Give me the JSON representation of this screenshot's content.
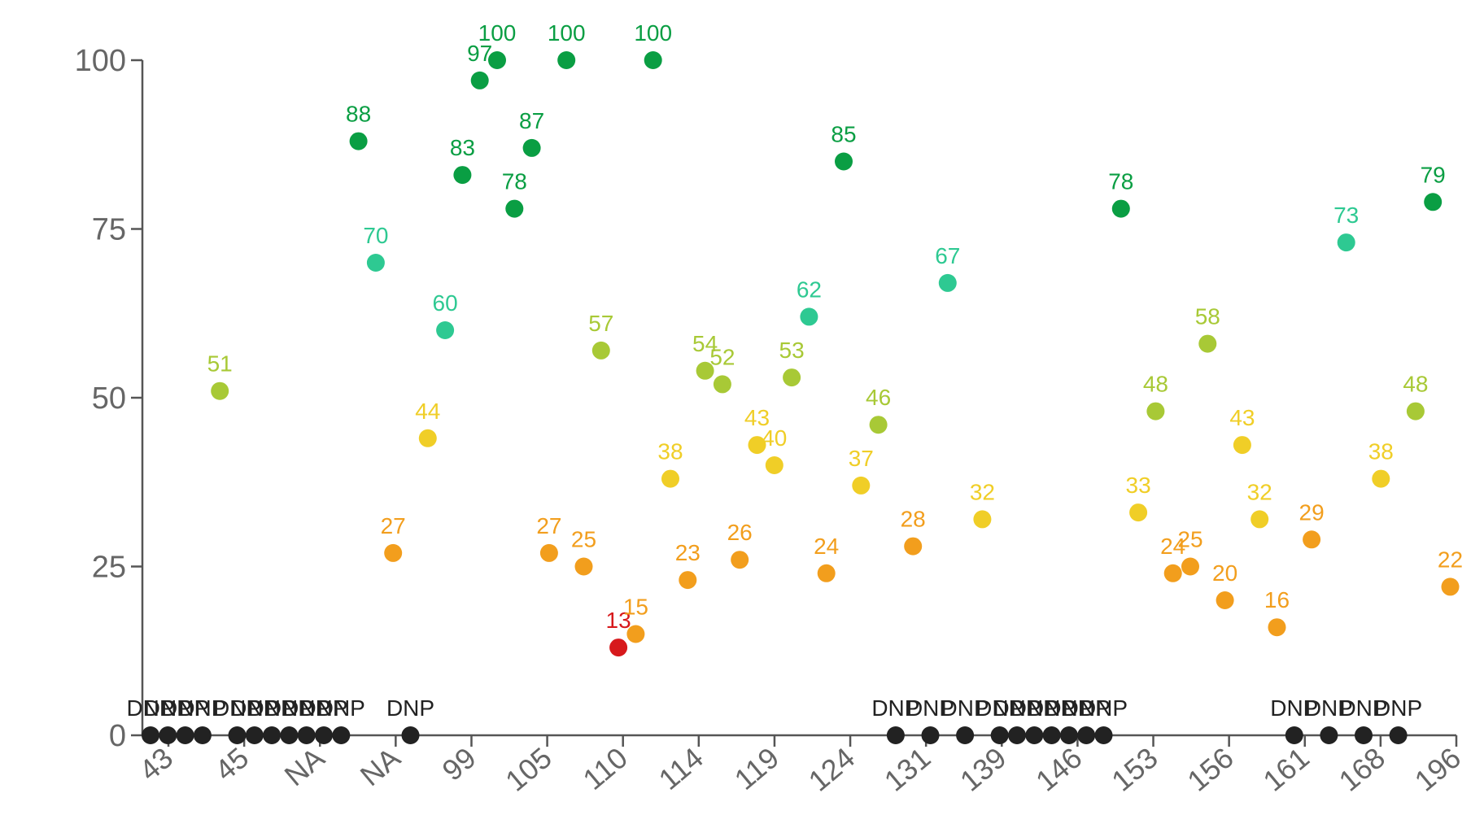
{
  "chart_data": {
    "type": "scatter",
    "title": "",
    "xlabel": "",
    "ylabel": "",
    "ylim": [
      0,
      100
    ],
    "yticks": [
      0,
      25,
      50,
      75,
      100
    ],
    "grid": false,
    "legend": "none",
    "x_tick_labels": [
      "43",
      "45",
      "NA",
      "NA",
      "99",
      "105",
      "110",
      "114",
      "119",
      "124",
      "131",
      "139",
      "146",
      "153",
      "156",
      "161",
      "168",
      "196"
    ],
    "missing_label": "DNP",
    "points": [
      {
        "label": "DNP"
      },
      {
        "label": "DNP"
      },
      {
        "label": "DNP"
      },
      {
        "label": "DNP"
      },
      {
        "value": 51,
        "label": "51"
      },
      {
        "label": "DNP"
      },
      {
        "label": "DNP"
      },
      {
        "label": "DNP"
      },
      {
        "label": "DNP"
      },
      {
        "label": "DNP"
      },
      {
        "label": "DNP"
      },
      {
        "label": "DNP"
      },
      {
        "value": 88,
        "label": "88"
      },
      {
        "value": 70,
        "label": "70"
      },
      {
        "value": 27,
        "label": "27"
      },
      {
        "label": "DNP"
      },
      {
        "value": 44,
        "label": "44"
      },
      {
        "value": 60,
        "label": "60"
      },
      {
        "value": 83,
        "label": "83"
      },
      {
        "value": 97,
        "label": "97"
      },
      {
        "value": 100,
        "label": "100"
      },
      {
        "value": 78,
        "label": "78"
      },
      {
        "value": 87,
        "label": "87"
      },
      {
        "value": 27,
        "label": "27"
      },
      {
        "value": 100,
        "label": "100"
      },
      {
        "value": 25,
        "label": "25"
      },
      {
        "value": 57,
        "label": "57"
      },
      {
        "value": 13,
        "label": "13"
      },
      {
        "value": 15,
        "label": "15"
      },
      {
        "value": 100,
        "label": "100"
      },
      {
        "value": 38,
        "label": "38"
      },
      {
        "value": 23,
        "label": "23"
      },
      {
        "value": 54,
        "label": "54"
      },
      {
        "value": 52,
        "label": "52"
      },
      {
        "value": 26,
        "label": "26"
      },
      {
        "value": 43,
        "label": "43"
      },
      {
        "value": 40,
        "label": "40"
      },
      {
        "value": 53,
        "label": "53"
      },
      {
        "value": 62,
        "label": "62"
      },
      {
        "value": 24,
        "label": "24"
      },
      {
        "value": 85,
        "label": "85"
      },
      {
        "value": 37,
        "label": "37"
      },
      {
        "value": 46,
        "label": "46"
      },
      {
        "label": "DNP"
      },
      {
        "value": 28,
        "label": "28"
      },
      {
        "label": "DNP"
      },
      {
        "value": 67,
        "label": "67"
      },
      {
        "label": "DNP"
      },
      {
        "value": 32,
        "label": "32"
      },
      {
        "label": "DNP"
      },
      {
        "label": "DNP"
      },
      {
        "label": "DNP"
      },
      {
        "label": "DNP"
      },
      {
        "label": "DNP"
      },
      {
        "label": "DNP"
      },
      {
        "label": "DNP"
      },
      {
        "value": 78,
        "label": "78"
      },
      {
        "value": 33,
        "label": "33"
      },
      {
        "value": 48,
        "label": "48"
      },
      {
        "value": 24,
        "label": "24"
      },
      {
        "value": 25,
        "label": "25"
      },
      {
        "value": 58,
        "label": "58"
      },
      {
        "value": 20,
        "label": "20"
      },
      {
        "value": 43,
        "label": "43"
      },
      {
        "value": 32,
        "label": "32"
      },
      {
        "value": 16,
        "label": "16"
      },
      {
        "label": "DNP"
      },
      {
        "value": 29,
        "label": "29"
      },
      {
        "label": "DNP"
      },
      {
        "value": 73,
        "label": "73"
      },
      {
        "label": "DNP"
      },
      {
        "value": 38,
        "label": "38"
      },
      {
        "label": "DNP"
      },
      {
        "value": 48,
        "label": "48"
      },
      {
        "value": 79,
        "label": "79"
      },
      {
        "value": 22,
        "label": "22"
      }
    ],
    "colors": {
      "bands": [
        {
          "min": 0,
          "color": "#d7191c"
        },
        {
          "min": 15,
          "color": "#f29e1d"
        },
        {
          "min": 30,
          "color": "#f0ce27"
        },
        {
          "min": 45,
          "color": "#a8c936"
        },
        {
          "min": 60,
          "color": "#2ec992"
        },
        {
          "min": 75,
          "color": "#0a9e43"
        }
      ],
      "missing": "#222222",
      "axis": "#555555",
      "tick_text": "#666666"
    }
  }
}
